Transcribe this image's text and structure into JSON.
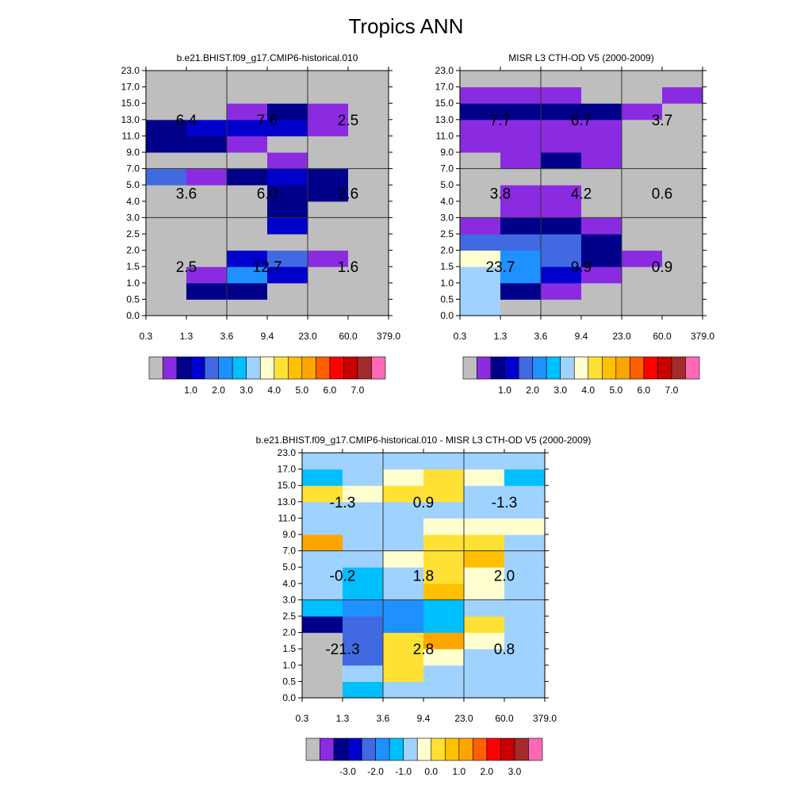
{
  "title": "Tropics ANN",
  "colors": {
    "missing": "#bebebe",
    "abs_palette": [
      "#bebebe",
      "#8a2be2",
      "#00008b",
      "#0000cd",
      "#4169e1",
      "#1e90ff",
      "#00bfff",
      "#a0d2ff",
      "#ffffd0",
      "#ffe135",
      "#ffc000",
      "#ffa500",
      "#ff6000",
      "#ff0000",
      "#c80000",
      "#a52a2a",
      "#ff69b4"
    ],
    "diff_palette": [
      "#bebebe",
      "#8a2be2",
      "#00008b",
      "#0000cd",
      "#4169e1",
      "#1e90ff",
      "#00bfff",
      "#a0d2ff",
      "#ffffd0",
      "#ffe135",
      "#ffc000",
      "#ffa500",
      "#ff6000",
      "#ff0000",
      "#c80000",
      "#a52a2a",
      "#ff69b4"
    ]
  },
  "chart_data": [
    {
      "type": "heatmap",
      "title": "b.e21.BHIST.f09_g17.CMIP6-historical.010",
      "x_ticks": [
        "0.3",
        "1.3",
        "3.6",
        "9.4",
        "23.0",
        "60.0",
        "379.0"
      ],
      "y_ticks": [
        "0.0",
        "0.5",
        "1.0",
        "1.5",
        "2.0",
        "2.5",
        "3.0",
        "4.0",
        "5.0",
        "7.0",
        "9.0",
        "11.0",
        "13.0",
        "15.0",
        "17.0",
        "23.0"
      ],
      "cells": [
        [
          0,
          0,
          0,
          0,
          0,
          0
        ],
        [
          0,
          2,
          2,
          0,
          0,
          0
        ],
        [
          0,
          1,
          5,
          3,
          0,
          0
        ],
        [
          0,
          0,
          3,
          4,
          1,
          0
        ],
        [
          0,
          0,
          0,
          0,
          0,
          0
        ],
        [
          0,
          0,
          0,
          3,
          0,
          0
        ],
        [
          0,
          0,
          0,
          2,
          0,
          0
        ],
        [
          0,
          0,
          0,
          2,
          2,
          0
        ],
        [
          4,
          1,
          2,
          3,
          2,
          0
        ],
        [
          0,
          0,
          0,
          1,
          0,
          0
        ],
        [
          2,
          2,
          1,
          0,
          0,
          0
        ],
        [
          2,
          3,
          3,
          3,
          1,
          0
        ],
        [
          0,
          0,
          1,
          2,
          1,
          0
        ],
        [
          0,
          0,
          0,
          0,
          0,
          0
        ],
        [
          0,
          0,
          0,
          0,
          0,
          0
        ]
      ],
      "box_values": {
        "low": [
          "2.5",
          "12.7",
          "1.6"
        ],
        "mid": [
          "3.6",
          "6.0",
          "2.6"
        ],
        "high": [
          "6.4",
          "7.6",
          "2.5"
        ]
      },
      "colorbar_labels": [
        "1.0",
        "2.0",
        "3.0",
        "4.0",
        "5.0",
        "6.0",
        "7.0"
      ],
      "palette": "abs_palette"
    },
    {
      "type": "heatmap",
      "title": "MISR L3 CTH-OD V5 (2000-2009)",
      "x_ticks": [
        "0.3",
        "1.3",
        "3.6",
        "9.4",
        "23.0",
        "60.0",
        "379.0"
      ],
      "y_ticks": [
        "0.0",
        "0.5",
        "1.0",
        "1.5",
        "2.0",
        "2.5",
        "3.0",
        "4.0",
        "5.0",
        "7.0",
        "9.0",
        "11.0",
        "13.0",
        "15.0",
        "17.0",
        "23.0"
      ],
      "cells": [
        [
          7,
          0,
          0,
          0,
          0,
          0
        ],
        [
          7,
          2,
          1,
          0,
          0,
          0
        ],
        [
          7,
          5,
          3,
          1,
          0,
          0
        ],
        [
          8,
          5,
          4,
          2,
          1,
          0
        ],
        [
          4,
          4,
          4,
          2,
          0,
          0
        ],
        [
          1,
          2,
          2,
          1,
          0,
          0
        ],
        [
          0,
          1,
          1,
          0,
          0,
          0
        ],
        [
          0,
          1,
          1,
          0,
          0,
          0
        ],
        [
          0,
          0,
          0,
          0,
          0,
          0
        ],
        [
          0,
          1,
          2,
          1,
          0,
          0
        ],
        [
          1,
          1,
          1,
          1,
          0,
          0
        ],
        [
          1,
          1,
          1,
          1,
          0,
          0
        ],
        [
          2,
          2,
          2,
          2,
          1,
          0
        ],
        [
          1,
          1,
          1,
          0,
          0,
          1
        ],
        [
          0,
          0,
          0,
          0,
          0,
          0
        ]
      ],
      "box_values": {
        "low": [
          "23.7",
          "9.9",
          "0.9"
        ],
        "mid": [
          "3.8",
          "4.2",
          "0.6"
        ],
        "high": [
          "7.7",
          "6.7",
          "3.7"
        ]
      },
      "colorbar_labels": [
        "1.0",
        "2.0",
        "3.0",
        "4.0",
        "5.0",
        "6.0",
        "7.0"
      ],
      "palette": "abs_palette"
    },
    {
      "type": "heatmap",
      "title": "b.e21.BHIST.f09_g17.CMIP6-historical.010 - MISR L3 CTH-OD V5 (2000-2009)",
      "x_ticks": [
        "0.3",
        "1.3",
        "3.6",
        "9.4",
        "23.0",
        "60.0",
        "379.0"
      ],
      "y_ticks": [
        "0.0",
        "0.5",
        "1.0",
        "1.5",
        "2.0",
        "2.5",
        "3.0",
        "4.0",
        "5.0",
        "7.0",
        "9.0",
        "11.0",
        "13.0",
        "15.0",
        "17.0",
        "23.0"
      ],
      "cells": [
        [
          0,
          6,
          7,
          7,
          7,
          7
        ],
        [
          0,
          7,
          9,
          7,
          7,
          7
        ],
        [
          0,
          4,
          9,
          8,
          7,
          7
        ],
        [
          0,
          4,
          9,
          11,
          8,
          7
        ],
        [
          2,
          4,
          5,
          6,
          9,
          7
        ],
        [
          6,
          5,
          5,
          6,
          7,
          7
        ],
        [
          7,
          6,
          7,
          10,
          8,
          7
        ],
        [
          7,
          6,
          7,
          9,
          8,
          7
        ],
        [
          7,
          7,
          8,
          9,
          10,
          7
        ],
        [
          11,
          7,
          7,
          9,
          9,
          7
        ],
        [
          7,
          7,
          7,
          8,
          8,
          8
        ],
        [
          7,
          7,
          7,
          7,
          7,
          7
        ],
        [
          9,
          8,
          9,
          9,
          7,
          7
        ],
        [
          6,
          7,
          8,
          9,
          8,
          6
        ],
        [
          7,
          7,
          7,
          7,
          7,
          7
        ]
      ],
      "box_values": {
        "low": [
          "-21.3",
          "2.8",
          "0.8"
        ],
        "mid": [
          "-0.2",
          "1.8",
          "2.0"
        ],
        "high": [
          "-1.3",
          "0.9",
          "-1.3"
        ]
      },
      "colorbar_labels": [
        "-3.0",
        "-2.0",
        "-1.0",
        "0.0",
        "1.0",
        "2.0",
        "3.0"
      ],
      "palette": "diff_palette"
    }
  ]
}
